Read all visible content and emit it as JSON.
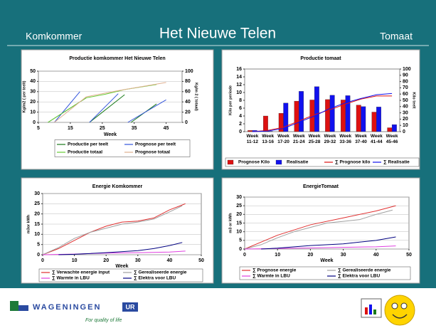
{
  "header": {
    "left": "Komkommer",
    "title": "Het Nieuwe Telen",
    "right": "Tomaat"
  },
  "chart_data": [
    {
      "type": "line",
      "title": "Productie komkommer Het Nieuwe Telen",
      "xlabel": "Week",
      "ylabel": "Kg/m2 ( per teelt)",
      "y2label": "Kg/m 2 ( totaal)",
      "xlim": [
        5,
        50
      ],
      "xticks": [
        5,
        15,
        25,
        35,
        45
      ],
      "ylim": [
        0,
        50
      ],
      "yticks": [
        0,
        10,
        20,
        30,
        40,
        50
      ],
      "y2lim": [
        0,
        100
      ],
      "y2ticks": [
        0,
        20,
        40,
        60,
        80,
        100
      ],
      "grid": true,
      "series": [
        {
          "name": "Productie per teelt",
          "color": "#1a7a1a",
          "x": [
            8,
            20,
            null,
            21,
            32,
            null,
            34,
            42
          ],
          "values": [
            0,
            24,
            null,
            0,
            27,
            null,
            0,
            18
          ]
        },
        {
          "name": "Prognose per teelt",
          "color": "#3355dd",
          "x": [
            10,
            18,
            null,
            21,
            30,
            null,
            33,
            45
          ],
          "values": [
            0,
            30,
            null,
            0,
            28,
            null,
            0,
            22
          ]
        },
        {
          "name": "Productie totaal",
          "color": "#66cc33",
          "axis": "y2",
          "x": [
            8,
            20,
            26,
            32,
            42
          ],
          "values": [
            0,
            48,
            55,
            64,
            74
          ]
        },
        {
          "name": "Prognose totaal",
          "color": "#e0b090",
          "axis": "y2",
          "x": [
            10,
            20,
            30,
            45
          ],
          "values": [
            0,
            50,
            62,
            78
          ]
        }
      ]
    },
    {
      "type": "bar",
      "title": "Productie tomaat",
      "ylabel": "Kilo per periode",
      "y2label": "Kilo teelt",
      "categories": [
        "Week 11-12",
        "Week 13-16",
        "Week 17-20",
        "Week 21-24",
        "Week 25-28",
        "Week 29-32",
        "Week 33-36",
        "Week 37-40",
        "Week 41-44",
        "Week 45-46"
      ],
      "ylim": [
        0,
        16
      ],
      "yticks": [
        0,
        2,
        4,
        6,
        8,
        10,
        12,
        14,
        16
      ],
      "y2lim": [
        0,
        100
      ],
      "y2ticks": [
        0,
        10,
        20,
        30,
        40,
        50,
        60,
        70,
        80,
        90,
        100
      ],
      "grid": false,
      "series": [
        {
          "name": "Prognose Kilo",
          "type": "bar",
          "color": "#dd1111",
          "values": [
            0.3,
            4,
            4.7,
            7.8,
            8.1,
            8.2,
            8.1,
            6.8,
            5.0,
            1.0
          ]
        },
        {
          "name": "Realisatie",
          "type": "bar",
          "color": "#1111ee",
          "values": [
            0.3,
            0.1,
            7.3,
            10.3,
            11.5,
            9.3,
            9.2,
            6.4,
            6.3,
            1.8
          ]
        },
        {
          "name": "∑ Prognose kilo",
          "type": "line",
          "axis": "y2",
          "color": "#dd1111",
          "values": [
            0,
            2,
            7,
            17,
            27,
            35,
            44,
            52,
            57,
            57
          ]
        },
        {
          "name": "∑ Realisatie",
          "type": "line",
          "axis": "y2",
          "color": "#1111ee",
          "values": [
            0,
            1,
            5,
            15,
            25,
            37,
            46,
            53,
            59,
            61
          ]
        }
      ]
    },
    {
      "type": "line",
      "title": "Energie Komkommer",
      "xlabel": "Week",
      "ylabel": "m3or kWh",
      "xlim": [
        0,
        50
      ],
      "xticks": [
        0,
        10,
        20,
        30,
        40,
        50
      ],
      "ylim": [
        0,
        30
      ],
      "yticks": [
        0,
        5,
        10,
        15,
        20,
        25,
        30
      ],
      "grid": true,
      "series": [
        {
          "name": "∑ Verwachte energie input",
          "color": "#e03030",
          "x": [
            0,
            5,
            10,
            15,
            20,
            25,
            30,
            35,
            40,
            45
          ],
          "values": [
            0,
            3,
            7,
            11,
            14,
            16,
            16.5,
            18,
            22,
            25
          ]
        },
        {
          "name": "∑ Gerealiseerde energie",
          "color": "#a0a0a0",
          "x": [
            0,
            5,
            10,
            15,
            20,
            25,
            30,
            35,
            40,
            44
          ],
          "values": [
            0,
            3.5,
            8,
            11,
            13,
            15,
            16,
            17.5,
            21,
            24
          ]
        },
        {
          "name": "∑ Warmte in LBU",
          "color": "#e040e0",
          "x": [
            0,
            10,
            20,
            30,
            40,
            45
          ],
          "values": [
            0,
            0.3,
            0.8,
            1,
            1.3,
            1.8
          ]
        },
        {
          "name": "∑ Elektra voor LBU",
          "color": "#000080",
          "x": [
            5,
            10,
            20,
            30,
            35,
            40,
            44
          ],
          "values": [
            0,
            0.2,
            1,
            2,
            3,
            4.5,
            6
          ]
        }
      ]
    },
    {
      "type": "line",
      "title": "EnergieTomaat",
      "xlabel": "Week",
      "ylabel": "m3 or kWh",
      "xlim": [
        0,
        50
      ],
      "xticks": [
        0,
        10,
        20,
        30,
        40,
        50
      ],
      "ylim": [
        0,
        30
      ],
      "yticks": [
        0,
        5,
        10,
        15,
        20,
        25,
        30
      ],
      "grid": true,
      "series": [
        {
          "name": "∑ Prognose energie",
          "color": "#e03030",
          "x": [
            0,
            10,
            20,
            30,
            40,
            46
          ],
          "values": [
            0,
            8,
            14,
            18,
            22,
            25
          ]
        },
        {
          "name": "∑ Gerealiseerde energie",
          "color": "#a0a0a0",
          "x": [
            0,
            5,
            10,
            15,
            20,
            25,
            30,
            35,
            40,
            45
          ],
          "values": [
            0,
            2.5,
            6.5,
            10,
            12.5,
            15,
            16,
            17,
            20,
            22.5
          ]
        },
        {
          "name": "∑ Warmte in LBU",
          "color": "#e040e0",
          "x": [
            0,
            10,
            20,
            30,
            40,
            46
          ],
          "values": [
            0,
            0.3,
            0.6,
            1,
            1.3,
            1.8
          ]
        },
        {
          "name": "∑ Elektra voor LBU",
          "color": "#000080",
          "x": [
            5,
            10,
            20,
            30,
            40,
            46
          ],
          "values": [
            0,
            0.5,
            2,
            3,
            5,
            7
          ]
        }
      ]
    }
  ],
  "footer": {
    "logo": "WAGENINGEN",
    "logo_mark": "UR",
    "tagline": "For quality of life"
  }
}
